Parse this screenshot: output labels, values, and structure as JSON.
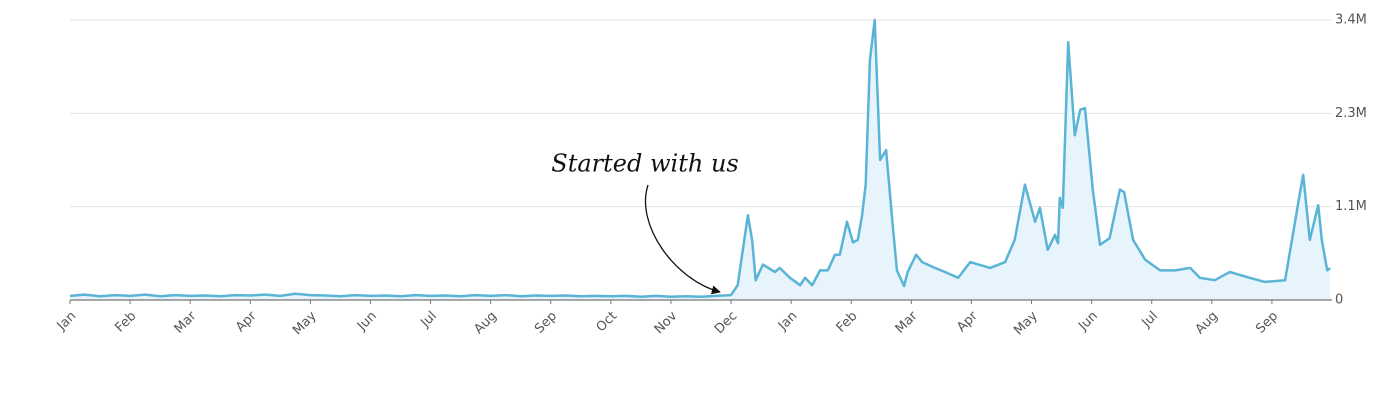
{
  "chart_data": {
    "type": "area",
    "annotation": "Started with us",
    "color": "#5ab4d6",
    "fill_color": "#e8f4fb",
    "grid": true,
    "xlim": [
      0,
      21
    ],
    "ylim": [
      0,
      3400000
    ],
    "xticks": [
      {
        "value": 0,
        "label": "Jan"
      },
      {
        "value": 1,
        "label": "Feb"
      },
      {
        "value": 2,
        "label": "Mar"
      },
      {
        "value": 3,
        "label": "Apr"
      },
      {
        "value": 4,
        "label": "May"
      },
      {
        "value": 5,
        "label": "Jun"
      },
      {
        "value": 6,
        "label": "Jul"
      },
      {
        "value": 7,
        "label": "Aug"
      },
      {
        "value": 8,
        "label": "Sep"
      },
      {
        "value": 9,
        "label": "Oct"
      },
      {
        "value": 10,
        "label": "Nov"
      },
      {
        "value": 11,
        "label": "Dec"
      },
      {
        "value": 12,
        "label": "Jan"
      },
      {
        "value": 13,
        "label": "Feb"
      },
      {
        "value": 14,
        "label": "Mar"
      },
      {
        "value": 15,
        "label": "Apr"
      },
      {
        "value": 16,
        "label": "May"
      },
      {
        "value": 17,
        "label": "Jun"
      },
      {
        "value": 18,
        "label": "Jul"
      },
      {
        "value": 19,
        "label": "Aug"
      },
      {
        "value": 20,
        "label": "Sep"
      }
    ],
    "yticks": [
      0,
      {
        "value": 1133333,
        "label": "1.1M"
      },
      {
        "value": 2266667,
        "label": "2.3M"
      },
      {
        "value": 3400000,
        "label": "3.4M"
      }
    ],
    "x": [
      0,
      0.25,
      0.5,
      0.75,
      1,
      1.25,
      1.5,
      1.75,
      2,
      2.25,
      2.5,
      2.75,
      3,
      3.25,
      3.5,
      3.75,
      4,
      4.25,
      4.5,
      4.75,
      5,
      5.25,
      5.5,
      5.75,
      6,
      6.25,
      6.5,
      6.75,
      7,
      7.25,
      7.5,
      7.75,
      8,
      8.25,
      8.5,
      8.75,
      9,
      9.25,
      9.5,
      9.75,
      10,
      10.25,
      10.5,
      10.75,
      11.0,
      11.11,
      11.2,
      11.28,
      11.35,
      11.41,
      11.53,
      11.73,
      11.81,
      11.98,
      12.15,
      12.23,
      12.35,
      12.48,
      12.61,
      12.73,
      12.81,
      12.93,
      13.03,
      13.11,
      13.18,
      13.24,
      13.31,
      13.39,
      13.48,
      13.58,
      13.69,
      13.76,
      13.88,
      13.94,
      14.08,
      14.18,
      14.39,
      14.56,
      14.78,
      14.98,
      15.31,
      15.56,
      15.72,
      15.89,
      16.06,
      16.14,
      16.27,
      16.39,
      16.44,
      16.47,
      16.52,
      16.61,
      16.72,
      16.81,
      16.89,
      17.02,
      17.14,
      17.3,
      17.47,
      17.54,
      17.69,
      17.89,
      18.14,
      18.39,
      18.64,
      18.8,
      19.05,
      19.3,
      19.63,
      19.88,
      20.22,
      20.47,
      20.52,
      20.63,
      20.77,
      20.83,
      20.92,
      20.97
    ],
    "values": [
      50000,
      65000,
      45000,
      60000,
      50000,
      65000,
      45000,
      60000,
      50000,
      55000,
      45000,
      60000,
      55000,
      65000,
      50000,
      75000,
      60000,
      55000,
      45000,
      60000,
      50000,
      55000,
      45000,
      60000,
      50000,
      55000,
      45000,
      60000,
      50000,
      60000,
      45000,
      55000,
      50000,
      55000,
      45000,
      50000,
      45000,
      50000,
      40000,
      50000,
      40000,
      45000,
      40000,
      50000,
      60000,
      180000,
      630000,
      1030000,
      730000,
      240000,
      430000,
      340000,
      390000,
      270000,
      180000,
      270000,
      180000,
      360000,
      360000,
      550000,
      550000,
      950000,
      700000,
      730000,
      1030000,
      1400000,
      2910000,
      3400000,
      1700000,
      1820000,
      910000,
      360000,
      170000,
      340000,
      550000,
      460000,
      390000,
      340000,
      270000,
      460000,
      390000,
      460000,
      730000,
      1400000,
      950000,
      1120000,
      610000,
      790000,
      690000,
      1240000,
      1120000,
      3130000,
      2000000,
      2310000,
      2330000,
      1340000,
      670000,
      750000,
      1340000,
      1310000,
      730000,
      490000,
      360000,
      360000,
      390000,
      270000,
      240000,
      340000,
      270000,
      220000,
      240000,
      1310000,
      1520000,
      730000,
      1150000,
      730000,
      360000,
      390000
    ]
  }
}
